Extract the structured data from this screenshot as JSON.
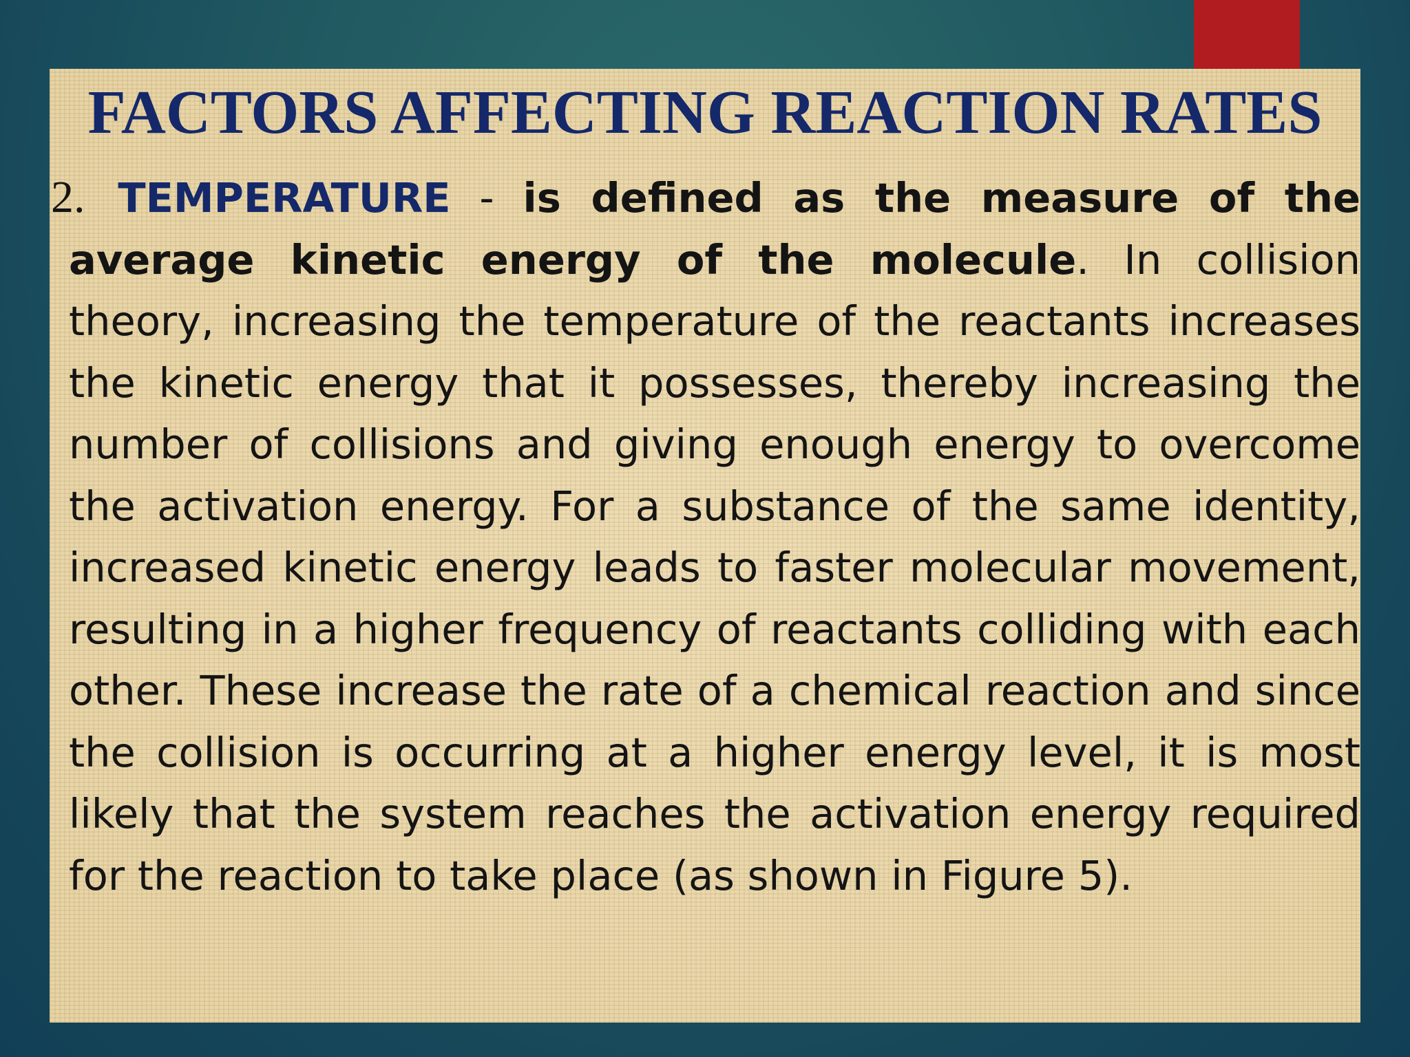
{
  "slide": {
    "title": "FACTORS AFFECTING REACTION RATES",
    "item_number": "2.",
    "term": "TEMPERATURE",
    "separator": "-",
    "definition": "is defined as the measure of the average kinetic energy of the molecule",
    "body": ". In collision theory, increasing the temperature of the reactants increases the kinetic energy that it possesses, thereby increasing the number of collisions and giving enough energy to overcome the activation energy. For a substance of the same identity, increased kinetic energy leads to faster molecular movement, resulting in a higher frequency of reactants colliding with each other. These increase the rate of a chemical reaction and since the collision is occurring at a higher energy level, it is most likely that the system reaches the activation energy required for the reaction to take place (as shown in Figure 5).",
    "colors": {
      "title": "#14286a",
      "term": "#14286a",
      "panel": "#e7d3a3",
      "accent_tab": "#b01c1f",
      "background": "#1b4f5e"
    }
  }
}
